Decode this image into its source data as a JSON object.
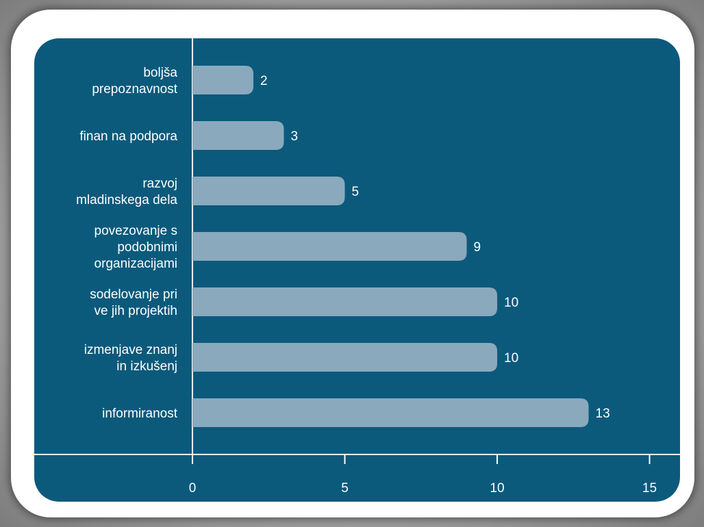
{
  "chart_data": {
    "type": "bar",
    "orientation": "horizontal",
    "categories": [
      [
        "boljša",
        "prepoznavnost"
      ],
      [
        "finan  na podpora"
      ],
      [
        "razvoj",
        "mladinskega dela"
      ],
      [
        "povezovanje s",
        "podobnimi",
        "organizacijami"
      ],
      [
        "sodelovanje pri",
        "ve  jih projektih"
      ],
      [
        "izmenjave znanj",
        "in izkušenj"
      ],
      [
        "informiranost"
      ]
    ],
    "values": [
      2,
      3,
      5,
      9,
      10,
      10,
      13
    ],
    "x_ticks": [
      "0",
      "5",
      "10",
      "15"
    ],
    "xlim": [
      0,
      15
    ],
    "bar_color": "#8aa9bd",
    "background_color": "#0b5a7c",
    "title": "",
    "xlabel": "",
    "ylabel": ""
  }
}
